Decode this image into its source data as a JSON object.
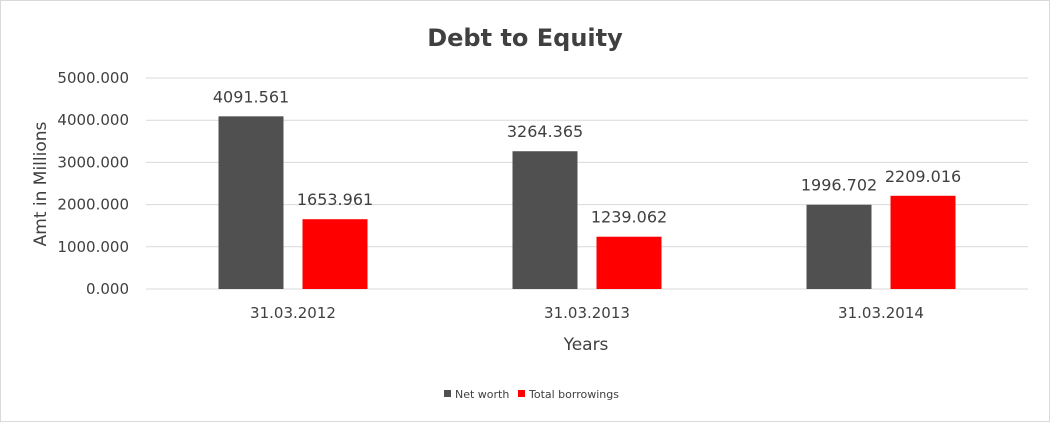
{
  "chart_data": {
    "type": "bar",
    "title": "Debt to Equity",
    "xlabel": "Years",
    "ylabel": "Amt in Millions",
    "categories": [
      "31.03.2012",
      "31.03.2013",
      "31.03.2014"
    ],
    "series": [
      {
        "name": "Net worth",
        "values": [
          4091.561,
          3264.365,
          1996.702
        ],
        "color": "#505050"
      },
      {
        "name": "Total borrowings",
        "values": [
          1653.961,
          1239.062,
          2209.016
        ],
        "color": "#ff0000"
      }
    ],
    "ylim": [
      0,
      5000
    ],
    "yticks": [
      "0.000",
      "1000.000",
      "2000.000",
      "3000.000",
      "4000.000",
      "5000.000"
    ],
    "data_labels": [
      [
        "4091.561",
        "3264.365",
        "1996.702"
      ],
      [
        "1653.961",
        "1239.062",
        "2209.016"
      ]
    ],
    "grid": true,
    "legend_position": "bottom"
  }
}
